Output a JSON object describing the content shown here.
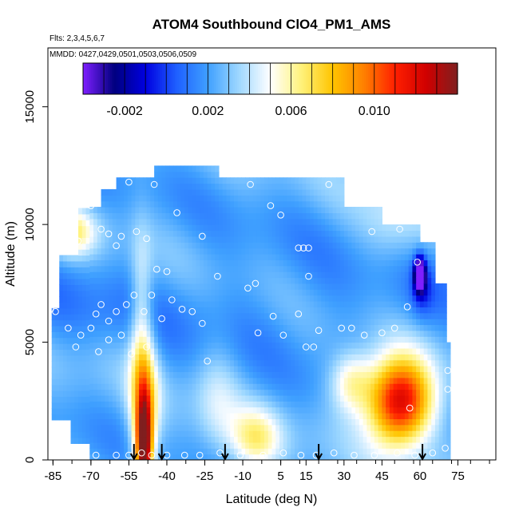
{
  "chart_data": {
    "type": "heatmap",
    "title": "ATOM4 Southbound ClO4_PM1_AMS",
    "flights_note": "Flts: 2,3,4,5,6,7",
    "dates_note": "MMDD: 0427,0429,0501,0503,0506,0509",
    "xlabel": "Latitude (deg N)",
    "ylabel": "Altitude (m)",
    "xlim": [
      -87,
      90
    ],
    "ylim": [
      0,
      17500
    ],
    "x_ticks": [
      -85,
      -70,
      -55,
      -40,
      -25,
      -10,
      5,
      15,
      30,
      45,
      60,
      75
    ],
    "y_ticks": [
      0,
      5000,
      10000,
      15000
    ],
    "colorbar": {
      "min": -0.004,
      "max": 0.014,
      "tick_values": [
        -0.002,
        0.002,
        0.006,
        0.01
      ],
      "tick_labels": [
        "-0.002",
        "0.002",
        "0.006",
        "0.010"
      ]
    },
    "profile_latitudes": [
      -53,
      -42,
      -17,
      20,
      61
    ],
    "observations": [
      {
        "lat": -80,
        "alt": 9900
      },
      {
        "lat": -78,
        "alt": 9500
      },
      {
        "lat": -75,
        "alt": 9300
      },
      {
        "lat": -70,
        "alt": 10800
      },
      {
        "lat": -66,
        "alt": 9800
      },
      {
        "lat": -63,
        "alt": 9600
      },
      {
        "lat": -60,
        "alt": 9100
      },
      {
        "lat": -58,
        "alt": 9500
      },
      {
        "lat": -52,
        "alt": 9700
      },
      {
        "lat": -48,
        "alt": 9400
      },
      {
        "lat": -44,
        "alt": 8100
      },
      {
        "lat": -40,
        "alt": 8000
      },
      {
        "lat": -36,
        "alt": 10500
      },
      {
        "lat": -26,
        "alt": 9500
      },
      {
        "lat": -55,
        "alt": 11800
      },
      {
        "lat": -45,
        "alt": 11700
      },
      {
        "lat": -18,
        "alt": 12300
      },
      {
        "lat": -7,
        "alt": 11700
      },
      {
        "lat": 24,
        "alt": 11700
      },
      {
        "lat": 1,
        "alt": 10800
      },
      {
        "lat": 5,
        "alt": 10400
      },
      {
        "lat": 12,
        "alt": 9000
      },
      {
        "lat": 14,
        "alt": 9000
      },
      {
        "lat": 16,
        "alt": 9000
      },
      {
        "lat": 41,
        "alt": 9700
      },
      {
        "lat": 52,
        "alt": 9800
      },
      {
        "lat": 59,
        "alt": 8400
      },
      {
        "lat": -20,
        "alt": 7800
      },
      {
        "lat": -8,
        "alt": 7300
      },
      {
        "lat": -5,
        "alt": 7500
      },
      {
        "lat": 16,
        "alt": 7800
      },
      {
        "lat": 55,
        "alt": 6500
      },
      {
        "lat": -84,
        "alt": 6300
      },
      {
        "lat": -79,
        "alt": 5600
      },
      {
        "lat": -76,
        "alt": 4800
      },
      {
        "lat": -74,
        "alt": 5300
      },
      {
        "lat": -70,
        "alt": 5600
      },
      {
        "lat": -68,
        "alt": 6200
      },
      {
        "lat": -66,
        "alt": 6600
      },
      {
        "lat": -63,
        "alt": 5900
      },
      {
        "lat": -60,
        "alt": 6300
      },
      {
        "lat": -56,
        "alt": 6600
      },
      {
        "lat": -53,
        "alt": 7000
      },
      {
        "lat": -49,
        "alt": 6300
      },
      {
        "lat": -46,
        "alt": 7000
      },
      {
        "lat": -42,
        "alt": 6000
      },
      {
        "lat": -38,
        "alt": 6800
      },
      {
        "lat": -34,
        "alt": 6400
      },
      {
        "lat": -30,
        "alt": 6300
      },
      {
        "lat": -26,
        "alt": 5800
      },
      {
        "lat": -67,
        "alt": 4600
      },
      {
        "lat": -63,
        "alt": 5100
      },
      {
        "lat": -58,
        "alt": 5300
      },
      {
        "lat": -54,
        "alt": 4500
      },
      {
        "lat": -48,
        "alt": 4800
      },
      {
        "lat": -24,
        "alt": 4200
      },
      {
        "lat": -4,
        "alt": 5400
      },
      {
        "lat": 2,
        "alt": 6100
      },
      {
        "lat": 6,
        "alt": 5300
      },
      {
        "lat": 12,
        "alt": 6200
      },
      {
        "lat": 15,
        "alt": 4800
      },
      {
        "lat": 20,
        "alt": 5500
      },
      {
        "lat": 18,
        "alt": 4800
      },
      {
        "lat": 29,
        "alt": 5600
      },
      {
        "lat": 33,
        "alt": 5600
      },
      {
        "lat": 38,
        "alt": 5300
      },
      {
        "lat": 45,
        "alt": 5400
      },
      {
        "lat": 50,
        "alt": 5600
      },
      {
        "lat": 71,
        "alt": 3800
      },
      {
        "lat": 71,
        "alt": 3000
      },
      {
        "lat": 56,
        "alt": 2200
      },
      {
        "lat": -82,
        "alt": 200
      },
      {
        "lat": -75,
        "alt": 200
      },
      {
        "lat": -68,
        "alt": 200
      },
      {
        "lat": -60,
        "alt": 200
      },
      {
        "lat": -55,
        "alt": 200
      },
      {
        "lat": -50,
        "alt": 300
      },
      {
        "lat": -46,
        "alt": 200
      },
      {
        "lat": -40,
        "alt": 200
      },
      {
        "lat": -33,
        "alt": 200
      },
      {
        "lat": -27,
        "alt": 200
      },
      {
        "lat": -19,
        "alt": 300
      },
      {
        "lat": -11,
        "alt": 200
      },
      {
        "lat": -2,
        "alt": 200
      },
      {
        "lat": 6,
        "alt": 300
      },
      {
        "lat": 13,
        "alt": 200
      },
      {
        "lat": 19,
        "alt": 200
      },
      {
        "lat": 26,
        "alt": 300
      },
      {
        "lat": 34,
        "alt": 200
      },
      {
        "lat": 42,
        "alt": 200
      },
      {
        "lat": 51,
        "alt": 300
      },
      {
        "lat": 58,
        "alt": 200
      },
      {
        "lat": 65,
        "alt": 300
      },
      {
        "lat": 70,
        "alt": 500
      },
      {
        "lat": -86,
        "alt": 6400
      }
    ]
  },
  "colors": {
    "ramp": [
      "#7f1fff",
      "#00007f",
      "#0000e0",
      "#1f60ff",
      "#3fa0ff",
      "#9fd8ff",
      "#ffffff",
      "#fff27a",
      "#ffc400",
      "#ff8000",
      "#ff1f00",
      "#d00000",
      "#7f1f1f"
    ],
    "marker_stroke": "#ffffff",
    "arrow": "#000000"
  }
}
